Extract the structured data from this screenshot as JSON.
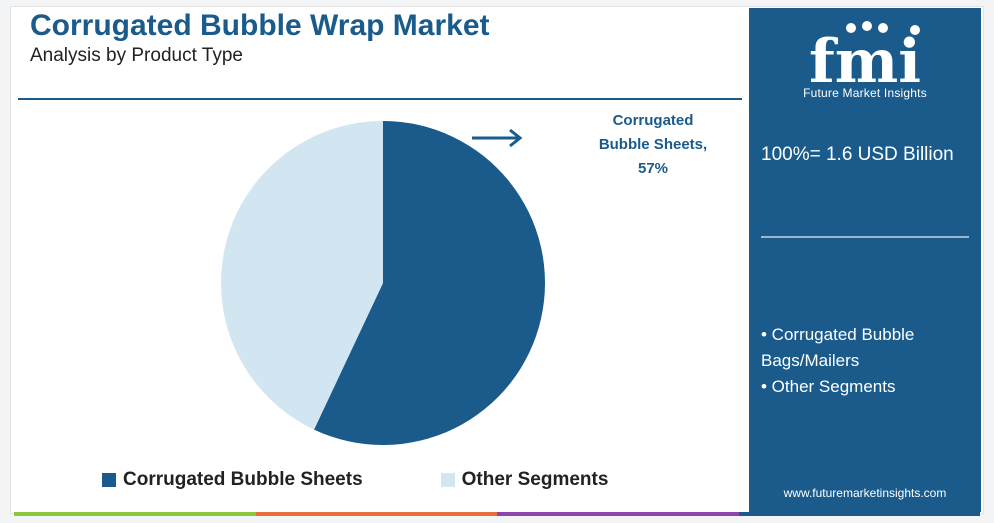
{
  "header": {
    "title": "Corrugated Bubble Wrap Market",
    "subtitle": "Analysis by Product Type"
  },
  "sidebar": {
    "logo_text": "fmi",
    "logo_caption": "Future Market Insights",
    "total_label": "100%= 1.6 USD Billion",
    "segments": [
      "• Corrugated Bubble Bags/Mailers",
      "• Other Segments"
    ],
    "website": "www.futuremarketinsights.com"
  },
  "callout": {
    "line1": "Corrugated",
    "line2": "Bubble Sheets,",
    "line3": "57%"
  },
  "colors": {
    "brand": "#1a5b8c",
    "slice_primary": "#1a5b8c",
    "slice_secondary": "#d2e6f2",
    "bar_segments": [
      "#8cc63f",
      "#e76f3c",
      "#8e44ad",
      "#1a5b8c"
    ]
  },
  "chart_data": {
    "type": "pie",
    "title": "Corrugated Bubble Wrap Market",
    "subtitle": "Analysis by Product Type",
    "slices": [
      {
        "name": "Corrugated Bubble Sheets",
        "value": 57,
        "color": "#1a5b8c"
      },
      {
        "name": "Other Segments",
        "value": 43,
        "color": "#d2e6f2"
      }
    ],
    "legend": "bottom",
    "legend_entries": [
      "Corrugated Bubble Sheets",
      "Other Segments"
    ],
    "total": "100%= 1.6 USD Billion"
  }
}
